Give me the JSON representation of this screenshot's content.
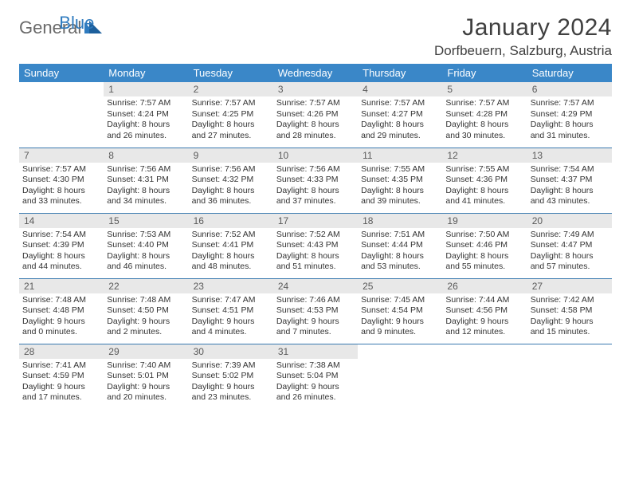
{
  "logo": {
    "general": "General",
    "blue": "Blue"
  },
  "title": "January 2024",
  "location": "Dorfbeuern, Salzburg, Austria",
  "colors": {
    "header_bg": "#3a87c8",
    "header_text": "#ffffff",
    "daynum_bg": "#e8e8e8",
    "daynum_text": "#5a5a5a",
    "rule": "#3a7ab0",
    "logo_gray": "#6a6a6a",
    "logo_blue": "#2f7bbf"
  },
  "weekdays": [
    "Sunday",
    "Monday",
    "Tuesday",
    "Wednesday",
    "Thursday",
    "Friday",
    "Saturday"
  ],
  "weeks": [
    [
      null,
      {
        "n": "1",
        "r": "Sunrise: 7:57 AM",
        "s": "Sunset: 4:24 PM",
        "d1": "Daylight: 8 hours",
        "d2": "and 26 minutes."
      },
      {
        "n": "2",
        "r": "Sunrise: 7:57 AM",
        "s": "Sunset: 4:25 PM",
        "d1": "Daylight: 8 hours",
        "d2": "and 27 minutes."
      },
      {
        "n": "3",
        "r": "Sunrise: 7:57 AM",
        "s": "Sunset: 4:26 PM",
        "d1": "Daylight: 8 hours",
        "d2": "and 28 minutes."
      },
      {
        "n": "4",
        "r": "Sunrise: 7:57 AM",
        "s": "Sunset: 4:27 PM",
        "d1": "Daylight: 8 hours",
        "d2": "and 29 minutes."
      },
      {
        "n": "5",
        "r": "Sunrise: 7:57 AM",
        "s": "Sunset: 4:28 PM",
        "d1": "Daylight: 8 hours",
        "d2": "and 30 minutes."
      },
      {
        "n": "6",
        "r": "Sunrise: 7:57 AM",
        "s": "Sunset: 4:29 PM",
        "d1": "Daylight: 8 hours",
        "d2": "and 31 minutes."
      }
    ],
    [
      {
        "n": "7",
        "r": "Sunrise: 7:57 AM",
        "s": "Sunset: 4:30 PM",
        "d1": "Daylight: 8 hours",
        "d2": "and 33 minutes."
      },
      {
        "n": "8",
        "r": "Sunrise: 7:56 AM",
        "s": "Sunset: 4:31 PM",
        "d1": "Daylight: 8 hours",
        "d2": "and 34 minutes."
      },
      {
        "n": "9",
        "r": "Sunrise: 7:56 AM",
        "s": "Sunset: 4:32 PM",
        "d1": "Daylight: 8 hours",
        "d2": "and 36 minutes."
      },
      {
        "n": "10",
        "r": "Sunrise: 7:56 AM",
        "s": "Sunset: 4:33 PM",
        "d1": "Daylight: 8 hours",
        "d2": "and 37 minutes."
      },
      {
        "n": "11",
        "r": "Sunrise: 7:55 AM",
        "s": "Sunset: 4:35 PM",
        "d1": "Daylight: 8 hours",
        "d2": "and 39 minutes."
      },
      {
        "n": "12",
        "r": "Sunrise: 7:55 AM",
        "s": "Sunset: 4:36 PM",
        "d1": "Daylight: 8 hours",
        "d2": "and 41 minutes."
      },
      {
        "n": "13",
        "r": "Sunrise: 7:54 AM",
        "s": "Sunset: 4:37 PM",
        "d1": "Daylight: 8 hours",
        "d2": "and 43 minutes."
      }
    ],
    [
      {
        "n": "14",
        "r": "Sunrise: 7:54 AM",
        "s": "Sunset: 4:39 PM",
        "d1": "Daylight: 8 hours",
        "d2": "and 44 minutes."
      },
      {
        "n": "15",
        "r": "Sunrise: 7:53 AM",
        "s": "Sunset: 4:40 PM",
        "d1": "Daylight: 8 hours",
        "d2": "and 46 minutes."
      },
      {
        "n": "16",
        "r": "Sunrise: 7:52 AM",
        "s": "Sunset: 4:41 PM",
        "d1": "Daylight: 8 hours",
        "d2": "and 48 minutes."
      },
      {
        "n": "17",
        "r": "Sunrise: 7:52 AM",
        "s": "Sunset: 4:43 PM",
        "d1": "Daylight: 8 hours",
        "d2": "and 51 minutes."
      },
      {
        "n": "18",
        "r": "Sunrise: 7:51 AM",
        "s": "Sunset: 4:44 PM",
        "d1": "Daylight: 8 hours",
        "d2": "and 53 minutes."
      },
      {
        "n": "19",
        "r": "Sunrise: 7:50 AM",
        "s": "Sunset: 4:46 PM",
        "d1": "Daylight: 8 hours",
        "d2": "and 55 minutes."
      },
      {
        "n": "20",
        "r": "Sunrise: 7:49 AM",
        "s": "Sunset: 4:47 PM",
        "d1": "Daylight: 8 hours",
        "d2": "and 57 minutes."
      }
    ],
    [
      {
        "n": "21",
        "r": "Sunrise: 7:48 AM",
        "s": "Sunset: 4:48 PM",
        "d1": "Daylight: 9 hours",
        "d2": "and 0 minutes."
      },
      {
        "n": "22",
        "r": "Sunrise: 7:48 AM",
        "s": "Sunset: 4:50 PM",
        "d1": "Daylight: 9 hours",
        "d2": "and 2 minutes."
      },
      {
        "n": "23",
        "r": "Sunrise: 7:47 AM",
        "s": "Sunset: 4:51 PM",
        "d1": "Daylight: 9 hours",
        "d2": "and 4 minutes."
      },
      {
        "n": "24",
        "r": "Sunrise: 7:46 AM",
        "s": "Sunset: 4:53 PM",
        "d1": "Daylight: 9 hours",
        "d2": "and 7 minutes."
      },
      {
        "n": "25",
        "r": "Sunrise: 7:45 AM",
        "s": "Sunset: 4:54 PM",
        "d1": "Daylight: 9 hours",
        "d2": "and 9 minutes."
      },
      {
        "n": "26",
        "r": "Sunrise: 7:44 AM",
        "s": "Sunset: 4:56 PM",
        "d1": "Daylight: 9 hours",
        "d2": "and 12 minutes."
      },
      {
        "n": "27",
        "r": "Sunrise: 7:42 AM",
        "s": "Sunset: 4:58 PM",
        "d1": "Daylight: 9 hours",
        "d2": "and 15 minutes."
      }
    ],
    [
      {
        "n": "28",
        "r": "Sunrise: 7:41 AM",
        "s": "Sunset: 4:59 PM",
        "d1": "Daylight: 9 hours",
        "d2": "and 17 minutes."
      },
      {
        "n": "29",
        "r": "Sunrise: 7:40 AM",
        "s": "Sunset: 5:01 PM",
        "d1": "Daylight: 9 hours",
        "d2": "and 20 minutes."
      },
      {
        "n": "30",
        "r": "Sunrise: 7:39 AM",
        "s": "Sunset: 5:02 PM",
        "d1": "Daylight: 9 hours",
        "d2": "and 23 minutes."
      },
      {
        "n": "31",
        "r": "Sunrise: 7:38 AM",
        "s": "Sunset: 5:04 PM",
        "d1": "Daylight: 9 hours",
        "d2": "and 26 minutes."
      },
      null,
      null,
      null
    ]
  ]
}
